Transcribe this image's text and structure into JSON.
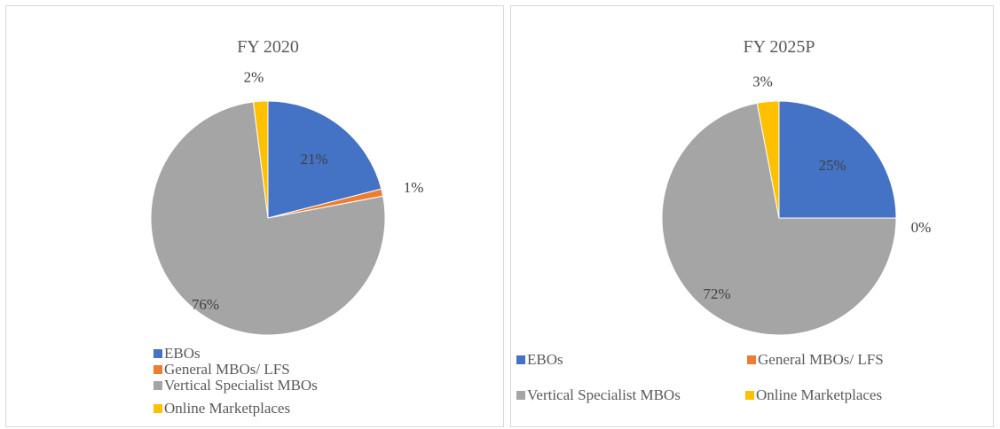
{
  "chart_data": [
    {
      "type": "pie",
      "title": "FY 2020",
      "categories": [
        "EBOs",
        "General MBOs/ LFS",
        "Vertical Specialist MBOs",
        "Online Marketplaces"
      ],
      "values": [
        21,
        1,
        76,
        2
      ],
      "data_labels": [
        "21%",
        "1%",
        "76%",
        "2%"
      ],
      "colors": [
        "#4472C4",
        "#ED7D31",
        "#A5A5A5",
        "#FFC000"
      ],
      "legend_position": "bottom-left"
    },
    {
      "type": "pie",
      "title": "FY 2025P",
      "categories": [
        "EBOs",
        "General MBOs/ LFS",
        "Vertical Specialist MBOs",
        "Online Marketplaces"
      ],
      "values": [
        25,
        0,
        72,
        3
      ],
      "data_labels": [
        "25%",
        "0%",
        "72%",
        "3%"
      ],
      "colors": [
        "#4472C4",
        "#ED7D31",
        "#A5A5A5",
        "#FFC000"
      ],
      "legend_position": "bottom"
    }
  ]
}
